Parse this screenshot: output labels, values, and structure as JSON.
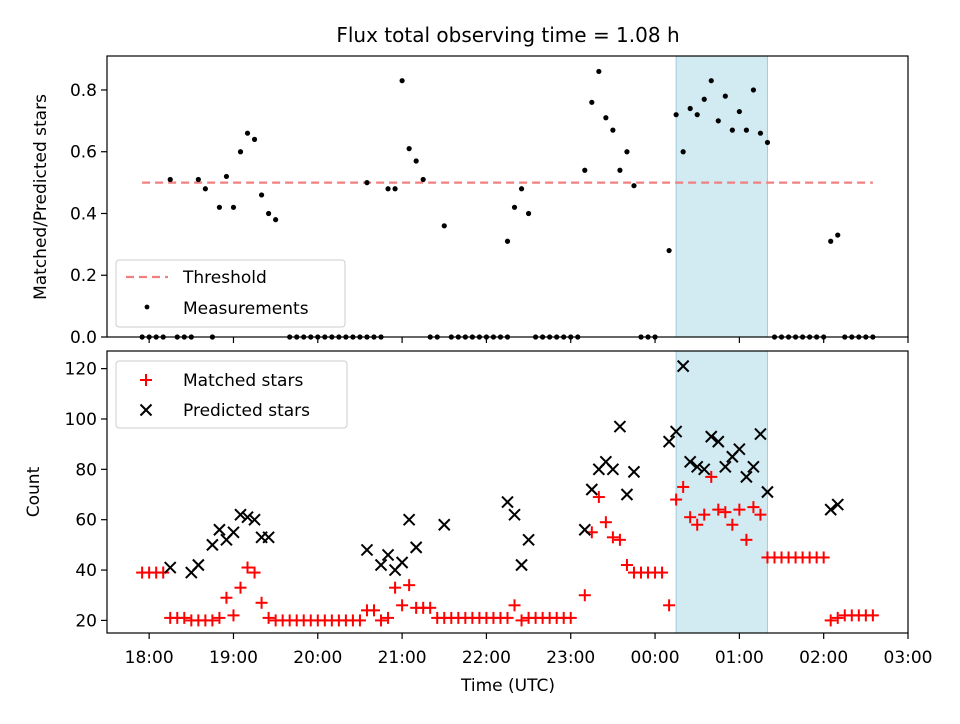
{
  "title": "Flux total observing time = 1.08 h",
  "colors": {
    "threshold": "#f08080",
    "measurement": "#000000",
    "matched": "#ff0000",
    "predicted": "#000000",
    "highlight": "#add8e6"
  },
  "chart_data": [
    {
      "type": "scatter",
      "ylabel": "Matched/Predicted stars",
      "ylim": [
        0,
        0.91
      ],
      "yticks": [
        "0.0",
        "0.2",
        "0.4",
        "0.6",
        "0.8"
      ],
      "legend_position": "lower-left",
      "legend": [
        "Threshold",
        "Measurements"
      ],
      "threshold": {
        "value": 0.5,
        "x_range": [
          "17:55",
          "02:35"
        ],
        "style": "dashed"
      },
      "highlight_span": [
        "00:15",
        "01:20"
      ],
      "series": [
        {
          "name": "Measurements",
          "marker": "dot",
          "points": [
            [
              "17:55",
              0
            ],
            [
              "18:00",
              0
            ],
            [
              "18:05",
              0
            ],
            [
              "18:10",
              0
            ],
            [
              "18:15",
              0.51
            ],
            [
              "18:20",
              0
            ],
            [
              "18:25",
              0
            ],
            [
              "18:30",
              0
            ],
            [
              "18:35",
              0.51
            ],
            [
              "18:40",
              0.48
            ],
            [
              "18:45",
              0
            ],
            [
              "18:50",
              0.42
            ],
            [
              "18:55",
              0.52
            ],
            [
              "19:00",
              0.42
            ],
            [
              "19:05",
              0.6
            ],
            [
              "19:10",
              0.66
            ],
            [
              "19:15",
              0.64
            ],
            [
              "19:20",
              0.46
            ],
            [
              "19:25",
              0.4
            ],
            [
              "19:30",
              0.38
            ],
            [
              "19:40",
              0
            ],
            [
              "19:45",
              0
            ],
            [
              "19:50",
              0
            ],
            [
              "19:55",
              0
            ],
            [
              "20:00",
              0
            ],
            [
              "20:05",
              0
            ],
            [
              "20:10",
              0
            ],
            [
              "20:15",
              0
            ],
            [
              "20:20",
              0
            ],
            [
              "20:25",
              0
            ],
            [
              "20:30",
              0
            ],
            [
              "20:35",
              0
            ],
            [
              "20:40",
              0
            ],
            [
              "20:45",
              0
            ],
            [
              "20:35",
              0.5
            ],
            [
              "20:50",
              0.48
            ],
            [
              "20:55",
              0.48
            ],
            [
              "21:00",
              0.83
            ],
            [
              "21:05",
              0.61
            ],
            [
              "21:10",
              0.57
            ],
            [
              "21:15",
              0.51
            ],
            [
              "21:20",
              0
            ],
            [
              "21:25",
              0
            ],
            [
              "21:30",
              0.36
            ],
            [
              "21:35",
              0
            ],
            [
              "21:40",
              0
            ],
            [
              "21:45",
              0
            ],
            [
              "21:50",
              0
            ],
            [
              "21:55",
              0
            ],
            [
              "22:00",
              0
            ],
            [
              "22:05",
              0
            ],
            [
              "22:10",
              0
            ],
            [
              "22:15",
              0
            ],
            [
              "22:15",
              0.31
            ],
            [
              "22:20",
              0.42
            ],
            [
              "22:25",
              0.48
            ],
            [
              "22:30",
              0.4
            ],
            [
              "22:35",
              0
            ],
            [
              "22:40",
              0
            ],
            [
              "22:45",
              0
            ],
            [
              "22:50",
              0
            ],
            [
              "22:55",
              0
            ],
            [
              "23:00",
              0
            ],
            [
              "23:05",
              0
            ],
            [
              "23:10",
              0.54
            ],
            [
              "23:15",
              0.76
            ],
            [
              "23:20",
              0.86
            ],
            [
              "23:25",
              0.71
            ],
            [
              "23:30",
              0.67
            ],
            [
              "23:35",
              0.54
            ],
            [
              "23:40",
              0.6
            ],
            [
              "23:45",
              0.49
            ],
            [
              "23:50",
              0
            ],
            [
              "23:55",
              0
            ],
            [
              "00:00",
              0
            ],
            [
              "00:10",
              0.28
            ],
            [
              "00:15",
              0.72
            ],
            [
              "00:20",
              0.6
            ],
            [
              "00:25",
              0.74
            ],
            [
              "00:30",
              0.72
            ],
            [
              "00:35",
              0.77
            ],
            [
              "00:40",
              0.83
            ],
            [
              "00:45",
              0.7
            ],
            [
              "00:50",
              0.78
            ],
            [
              "00:55",
              0.67
            ],
            [
              "01:00",
              0.73
            ],
            [
              "01:05",
              0.67
            ],
            [
              "01:10",
              0.8
            ],
            [
              "01:15",
              0.66
            ],
            [
              "01:20",
              0.63
            ],
            [
              "01:25",
              0
            ],
            [
              "01:30",
              0
            ],
            [
              "01:35",
              0
            ],
            [
              "01:40",
              0
            ],
            [
              "01:45",
              0
            ],
            [
              "01:50",
              0
            ],
            [
              "01:55",
              0
            ],
            [
              "02:00",
              0
            ],
            [
              "02:05",
              0.31
            ],
            [
              "02:10",
              0.33
            ],
            [
              "02:15",
              0
            ],
            [
              "02:20",
              0
            ],
            [
              "02:25",
              0
            ],
            [
              "02:30",
              0
            ],
            [
              "02:35",
              0
            ]
          ]
        }
      ]
    },
    {
      "type": "scatter",
      "ylabel": "Count",
      "xlabel": "Time (UTC)",
      "ylim": [
        15,
        127
      ],
      "yticks": [
        "20",
        "40",
        "60",
        "80",
        "100",
        "120"
      ],
      "xticks": [
        "18:00",
        "19:00",
        "20:00",
        "21:00",
        "22:00",
        "23:00",
        "00:00",
        "01:00",
        "02:00",
        "03:00"
      ],
      "legend_position": "upper-left",
      "legend": [
        "Matched stars",
        "Predicted stars"
      ],
      "highlight_span": [
        "00:15",
        "01:20"
      ],
      "series": [
        {
          "name": "Matched stars",
          "marker": "plus",
          "points": [
            [
              "17:55",
              39
            ],
            [
              "18:00",
              39
            ],
            [
              "18:05",
              39
            ],
            [
              "18:10",
              39
            ],
            [
              "18:15",
              21
            ],
            [
              "18:20",
              21
            ],
            [
              "18:25",
              21
            ],
            [
              "18:30",
              20
            ],
            [
              "18:35",
              20
            ],
            [
              "18:40",
              20
            ],
            [
              "18:45",
              20
            ],
            [
              "18:50",
              21
            ],
            [
              "18:55",
              29
            ],
            [
              "19:00",
              22
            ],
            [
              "19:05",
              33
            ],
            [
              "19:10",
              41
            ],
            [
              "19:15",
              39
            ],
            [
              "19:20",
              27
            ],
            [
              "19:25",
              21
            ],
            [
              "19:30",
              20
            ],
            [
              "19:35",
              20
            ],
            [
              "19:40",
              20
            ],
            [
              "19:45",
              20
            ],
            [
              "19:50",
              20
            ],
            [
              "19:55",
              20
            ],
            [
              "20:00",
              20
            ],
            [
              "20:05",
              20
            ],
            [
              "20:10",
              20
            ],
            [
              "20:15",
              20
            ],
            [
              "20:20",
              20
            ],
            [
              "20:25",
              20
            ],
            [
              "20:30",
              20
            ],
            [
              "20:35",
              24
            ],
            [
              "20:40",
              24
            ],
            [
              "20:45",
              20
            ],
            [
              "20:50",
              21
            ],
            [
              "20:55",
              33
            ],
            [
              "21:00",
              26
            ],
            [
              "21:05",
              34
            ],
            [
              "21:10",
              25
            ],
            [
              "21:15",
              25
            ],
            [
              "21:20",
              25
            ],
            [
              "21:25",
              21
            ],
            [
              "21:30",
              21
            ],
            [
              "21:35",
              21
            ],
            [
              "21:40",
              21
            ],
            [
              "21:45",
              21
            ],
            [
              "21:50",
              21
            ],
            [
              "21:55",
              21
            ],
            [
              "22:00",
              21
            ],
            [
              "22:05",
              21
            ],
            [
              "22:10",
              21
            ],
            [
              "22:15",
              21
            ],
            [
              "22:20",
              26
            ],
            [
              "22:25",
              20
            ],
            [
              "22:30",
              21
            ],
            [
              "22:35",
              21
            ],
            [
              "22:40",
              21
            ],
            [
              "22:45",
              21
            ],
            [
              "22:50",
              21
            ],
            [
              "22:55",
              21
            ],
            [
              "23:00",
              21
            ],
            [
              "23:10",
              30
            ],
            [
              "23:15",
              55
            ],
            [
              "23:20",
              69
            ],
            [
              "23:25",
              59
            ],
            [
              "23:30",
              53
            ],
            [
              "23:35",
              52
            ],
            [
              "23:40",
              42
            ],
            [
              "23:45",
              39
            ],
            [
              "23:50",
              39
            ],
            [
              "23:55",
              39
            ],
            [
              "00:00",
              39
            ],
            [
              "00:05",
              39
            ],
            [
              "00:10",
              26
            ],
            [
              "00:15",
              68
            ],
            [
              "00:20",
              73
            ],
            [
              "00:25",
              61
            ],
            [
              "00:30",
              58
            ],
            [
              "00:35",
              62
            ],
            [
              "00:40",
              77
            ],
            [
              "00:45",
              64
            ],
            [
              "00:50",
              63
            ],
            [
              "00:55",
              58
            ],
            [
              "01:00",
              64
            ],
            [
              "01:05",
              52
            ],
            [
              "01:10",
              65
            ],
            [
              "01:15",
              62
            ],
            [
              "01:20",
              45
            ],
            [
              "01:25",
              45
            ],
            [
              "01:30",
              45
            ],
            [
              "01:35",
              45
            ],
            [
              "01:40",
              45
            ],
            [
              "01:45",
              45
            ],
            [
              "01:50",
              45
            ],
            [
              "01:55",
              45
            ],
            [
              "02:00",
              45
            ],
            [
              "02:05",
              20
            ],
            [
              "02:10",
              21
            ],
            [
              "02:15",
              22
            ],
            [
              "02:20",
              22
            ],
            [
              "02:25",
              22
            ],
            [
              "02:30",
              22
            ],
            [
              "02:35",
              22
            ]
          ]
        },
        {
          "name": "Predicted stars",
          "marker": "x",
          "points": [
            [
              "18:15",
              41
            ],
            [
              "18:30",
              39
            ],
            [
              "18:35",
              42
            ],
            [
              "18:45",
              50
            ],
            [
              "18:50",
              56
            ],
            [
              "18:55",
              52
            ],
            [
              "19:00",
              55
            ],
            [
              "19:05",
              62
            ],
            [
              "19:10",
              61
            ],
            [
              "19:15",
              60
            ],
            [
              "19:20",
              53
            ],
            [
              "19:25",
              53
            ],
            [
              "20:35",
              48
            ],
            [
              "20:45",
              42
            ],
            [
              "20:50",
              46
            ],
            [
              "20:55",
              40
            ],
            [
              "21:00",
              43
            ],
            [
              "21:05",
              60
            ],
            [
              "21:10",
              49
            ],
            [
              "21:30",
              58
            ],
            [
              "22:15",
              67
            ],
            [
              "22:20",
              62
            ],
            [
              "22:25",
              42
            ],
            [
              "22:30",
              52
            ],
            [
              "23:10",
              56
            ],
            [
              "23:15",
              72
            ],
            [
              "23:20",
              80
            ],
            [
              "23:25",
              83
            ],
            [
              "23:30",
              80
            ],
            [
              "23:35",
              97
            ],
            [
              "23:40",
              70
            ],
            [
              "23:45",
              79
            ],
            [
              "00:10",
              91
            ],
            [
              "00:15",
              95
            ],
            [
              "00:20",
              121
            ],
            [
              "00:25",
              83
            ],
            [
              "00:30",
              81
            ],
            [
              "00:35",
              80
            ],
            [
              "00:40",
              93
            ],
            [
              "00:45",
              91
            ],
            [
              "00:50",
              81
            ],
            [
              "00:55",
              85
            ],
            [
              "01:00",
              88
            ],
            [
              "01:05",
              77
            ],
            [
              "01:10",
              81
            ],
            [
              "01:15",
              94
            ],
            [
              "01:20",
              71
            ],
            [
              "02:05",
              64
            ],
            [
              "02:10",
              66
            ]
          ]
        }
      ]
    }
  ]
}
